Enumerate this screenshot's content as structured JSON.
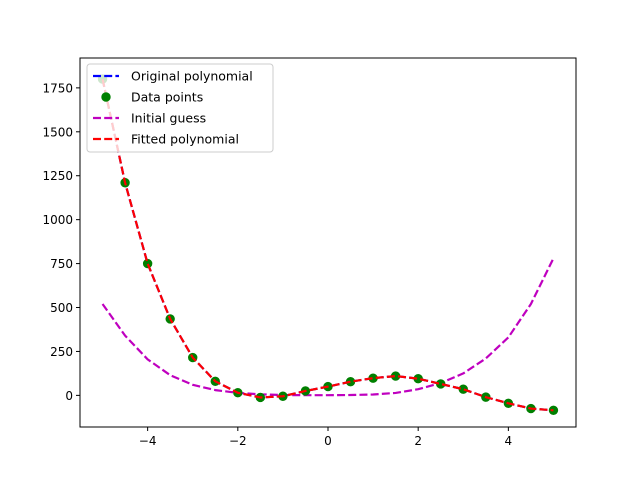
{
  "chart_data": {
    "type": "line",
    "title": "",
    "xlabel": "",
    "ylabel": "",
    "xlim": [
      -5.5,
      5.5
    ],
    "ylim": [
      -180,
      1920
    ],
    "xticks": [
      -4,
      -2,
      0,
      2,
      4
    ],
    "xtick_labels": [
      "−4",
      "−2",
      "0",
      "2",
      "4"
    ],
    "yticks": [
      0,
      250,
      500,
      750,
      1000,
      1250,
      1500,
      1750
    ],
    "ytick_labels": [
      "0",
      "250",
      "500",
      "750",
      "1000",
      "1250",
      "1500",
      "1750"
    ],
    "legend_position": "top-left",
    "series": [
      {
        "name": "Original polynomial",
        "style": "dashed-line",
        "color": "#0000ff",
        "x": [
          -5.0,
          -4.5,
          -4.0,
          -3.5,
          -3.0,
          -2.5,
          -2.0,
          -1.5,
          -1.0,
          -0.5,
          0.0,
          0.5,
          1.0,
          1.5,
          2.0,
          2.5,
          3.0,
          3.5,
          4.0,
          4.5,
          5.0
        ],
        "y": [
          1800,
          1210,
          750,
          435,
          215,
          80,
          15,
          -12,
          -5,
          25,
          50,
          78,
          98,
          110,
          95,
          65,
          35,
          -10,
          -45,
          -75,
          -85
        ]
      },
      {
        "name": "Data points",
        "style": "markers",
        "color": "#008000",
        "x": [
          -5.0,
          -4.5,
          -4.0,
          -3.5,
          -3.0,
          -2.5,
          -2.0,
          -1.5,
          -1.0,
          -0.5,
          0.0,
          0.5,
          1.0,
          1.5,
          2.0,
          2.5,
          3.0,
          3.5,
          4.0,
          4.5,
          5.0
        ],
        "y": [
          1800,
          1210,
          750,
          435,
          215,
          80,
          15,
          -12,
          -5,
          25,
          50,
          78,
          98,
          110,
          95,
          65,
          35,
          -10,
          -45,
          -75,
          -85
        ]
      },
      {
        "name": "Initial guess",
        "style": "dashed-line",
        "color": "#bf00bf",
        "x": [
          -5.0,
          -4.5,
          -4.0,
          -3.5,
          -3.0,
          -2.5,
          -2.0,
          -1.5,
          -1.0,
          -0.5,
          0.0,
          0.5,
          1.0,
          1.5,
          2.0,
          2.5,
          3.0,
          3.5,
          4.0,
          4.5,
          5.0
        ],
        "y": [
          520,
          340,
          205,
          115,
          60,
          30,
          14,
          6,
          2,
          1,
          1,
          2,
          5,
          14,
          35,
          70,
          125,
          210,
          330,
          520,
          780
        ]
      },
      {
        "name": "Fitted polynomial",
        "style": "dashed-line",
        "color": "#ff0000",
        "x": [
          -5.0,
          -4.5,
          -4.0,
          -3.5,
          -3.0,
          -2.5,
          -2.0,
          -1.5,
          -1.0,
          -0.5,
          0.0,
          0.5,
          1.0,
          1.5,
          2.0,
          2.5,
          3.0,
          3.5,
          4.0,
          4.5,
          5.0
        ],
        "y": [
          1800,
          1210,
          750,
          435,
          215,
          80,
          15,
          -12,
          -5,
          25,
          50,
          78,
          98,
          110,
          95,
          65,
          35,
          -10,
          -45,
          -75,
          -85
        ]
      }
    ]
  }
}
